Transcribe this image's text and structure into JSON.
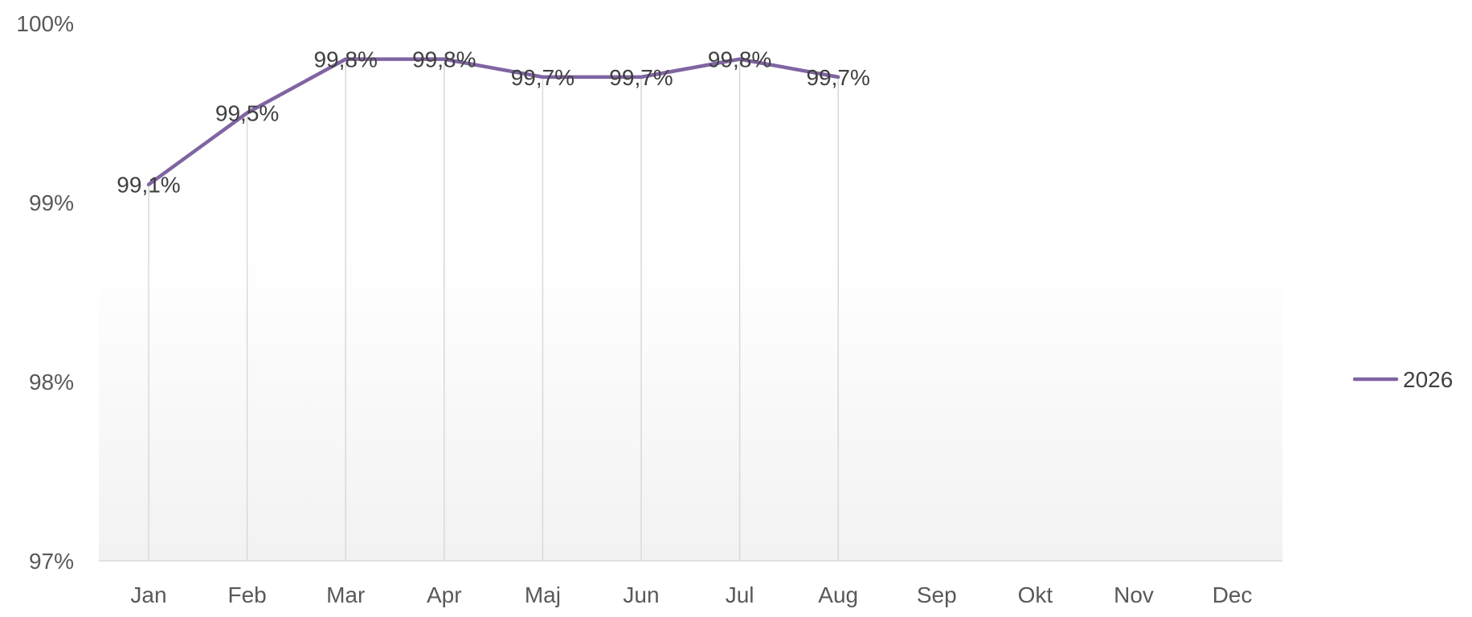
{
  "chart_data": {
    "type": "line",
    "title": "",
    "xlabel": "",
    "ylabel": "",
    "categories": [
      "Jan",
      "Feb",
      "Mar",
      "Apr",
      "Maj",
      "Jun",
      "Jul",
      "Aug",
      "Sep",
      "Okt",
      "Nov",
      "Dec"
    ],
    "series": [
      {
        "name": "2026",
        "color": "#8064A2",
        "values": [
          99.1,
          99.5,
          99.8,
          99.8,
          99.7,
          99.7,
          99.8,
          99.7,
          null,
          null,
          null,
          null
        ],
        "labels": [
          "99,1%",
          "99,5%",
          "99,8%",
          "99,8%",
          "99,7%",
          "99,7%",
          "99,8%",
          "99,7%",
          null,
          null,
          null,
          null
        ]
      }
    ],
    "ylim": [
      97,
      100
    ],
    "yticks": [
      97,
      98,
      99,
      100
    ],
    "ytick_labels": [
      "97%",
      "98%",
      "99%",
      "100%"
    ],
    "drop_lines": true,
    "grid": false,
    "legend": "right",
    "background_gradient": [
      "#ffffff",
      "#f2f2f2"
    ]
  }
}
